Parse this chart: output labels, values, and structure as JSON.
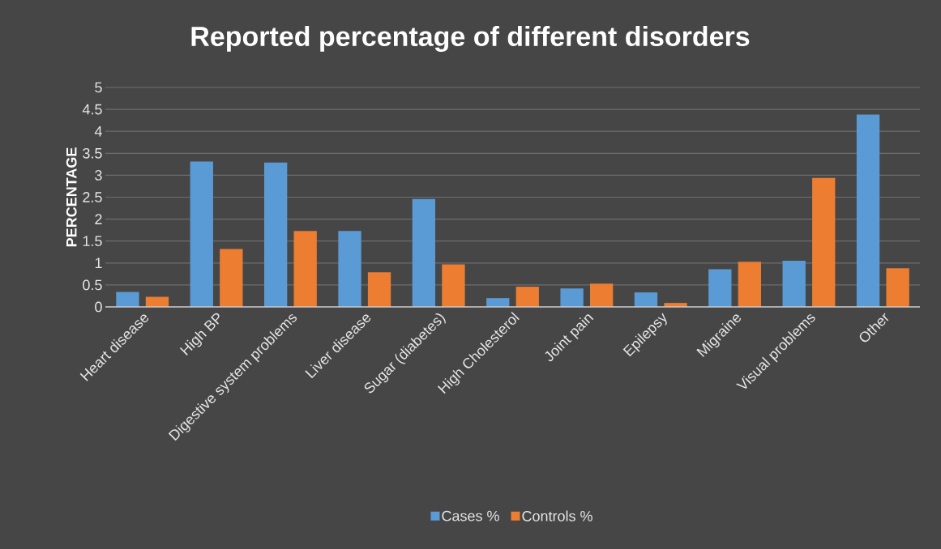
{
  "chart_data": {
    "type": "bar",
    "title": "Reported percentage of different disorders",
    "ylabel": "PERCENTAGE",
    "categories": [
      "Heart disease",
      "High BP",
      "Digestive system problems",
      "Liver disease",
      "Sugar (diabetes)",
      "High Cholesterol",
      "Joint pain",
      "Epilepsy",
      "Migraine",
      "Visual problems",
      "Other"
    ],
    "series": [
      {
        "name": "Cases %",
        "color": "#5b9bd5",
        "values": [
          0.34,
          3.31,
          3.29,
          1.73,
          2.46,
          0.2,
          0.42,
          0.33,
          0.86,
          1.05,
          4.38
        ]
      },
      {
        "name": "Controls %",
        "color": "#ed7d31",
        "values": [
          0.23,
          1.32,
          1.73,
          0.79,
          0.97,
          0.46,
          0.53,
          0.09,
          1.03,
          2.94,
          0.88
        ]
      }
    ],
    "ylim": [
      0,
      5
    ],
    "yticks": [
      0,
      0.5,
      1,
      1.5,
      2,
      2.5,
      3,
      3.5,
      4,
      4.5,
      5
    ],
    "grid": "y",
    "legend": "bottom"
  }
}
